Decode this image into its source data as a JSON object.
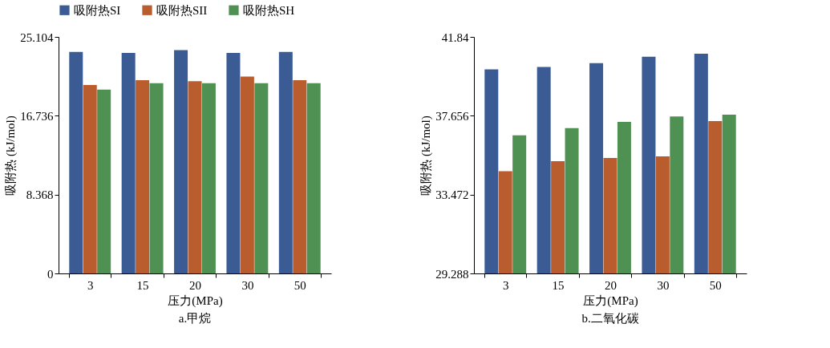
{
  "chart_data": [
    {
      "type": "bar",
      "title": "a.甲烷",
      "xlabel": "压力(MPa)",
      "ylabel": "吸附热 (kJ/mol)",
      "categories": [
        "3",
        "15",
        "20",
        "30",
        "50"
      ],
      "series": [
        {
          "name": "吸附热SI",
          "color": "#3a5b94",
          "values": [
            23.5,
            23.4,
            23.7,
            23.4,
            23.5
          ]
        },
        {
          "name": "吸附热SII",
          "color": "#b95c2e",
          "values": [
            20.0,
            20.5,
            20.4,
            20.9,
            20.5
          ]
        },
        {
          "name": "吸附热SH",
          "color": "#4f9152",
          "values": [
            19.5,
            20.2,
            20.2,
            20.2,
            20.2
          ]
        }
      ],
      "ylim": [
        0,
        25.104
      ],
      "yticks": [
        0,
        8.368,
        16.736,
        25.104
      ],
      "grid": false,
      "legend": "top"
    },
    {
      "type": "bar",
      "title": "b.二氧化碳",
      "xlabel": "压力(MPa)",
      "ylabel": "吸附热 (kJ/mol)",
      "categories": [
        "3",
        "15",
        "20",
        "30",
        "50"
      ],
      "series": [
        {
          "name": "吸附热SI",
          "color": "#3a5b94",
          "values": [
            40.12,
            40.24,
            40.45,
            40.79,
            40.95
          ]
        },
        {
          "name": "吸附热SII",
          "color": "#b95c2e",
          "values": [
            34.71,
            35.25,
            35.42,
            35.5,
            37.37
          ]
        },
        {
          "name": "吸附热SH",
          "color": "#4f9152",
          "values": [
            36.62,
            37.0,
            37.33,
            37.62,
            37.71
          ]
        }
      ],
      "ylim": [
        29.288,
        41.84
      ],
      "yticks": [
        29.288,
        33.472,
        37.656,
        41.84
      ],
      "grid": false,
      "legend": "top"
    }
  ]
}
